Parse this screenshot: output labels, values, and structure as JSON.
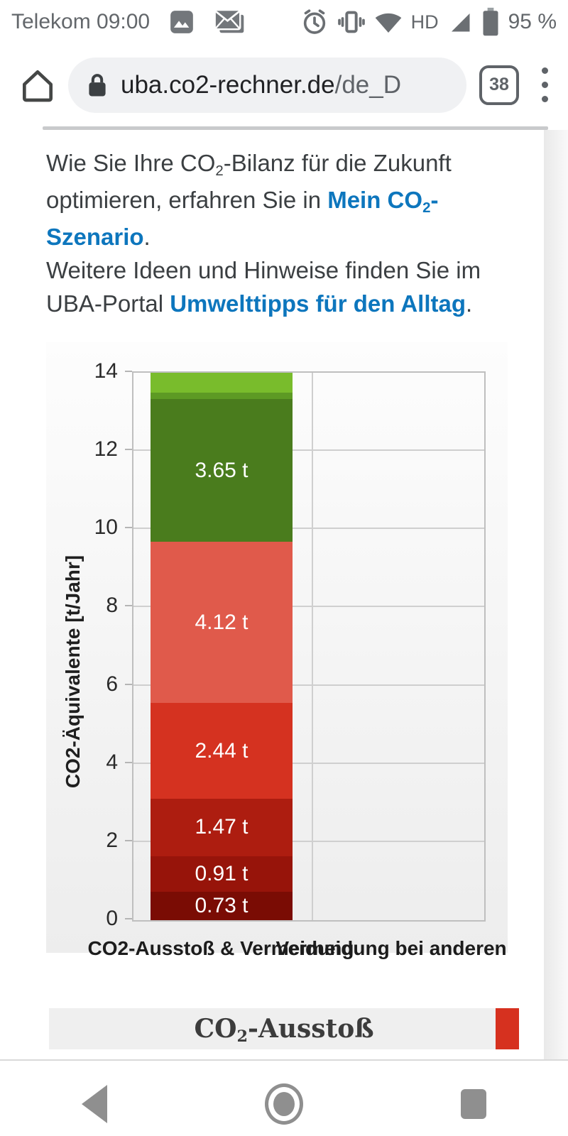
{
  "status_bar": {
    "carrier_time": "Telekom 09:00",
    "hd_label": "HD",
    "battery_pct": "95 %",
    "icons": [
      "photo-notification-icon",
      "email-notification-icon",
      "alarm-icon",
      "vibrate-icon",
      "wifi-icon",
      "signal-icon",
      "battery-icon"
    ]
  },
  "browser": {
    "url_domain": "uba.co2-rechner.de",
    "url_path": "/de_D",
    "tab_count": "38"
  },
  "article": {
    "link_color": "#0d76bd",
    "lines": [
      [
        {
          "t": "Wie Sie Ihre CO"
        },
        {
          "t": "2",
          "sub": 1
        },
        {
          "t": "-Bilanz für die Zukunft"
        }
      ],
      [
        {
          "t": "optimieren, erfahren Sie in "
        },
        {
          "t": "Mein CO",
          "link": 1
        },
        {
          "t": "2",
          "sub": 1,
          "link": 1
        },
        {
          "t": "-",
          "link": 1
        }
      ],
      [
        {
          "t": "Szenario",
          "link": 1
        },
        {
          "t": "."
        }
      ],
      [
        {
          "t": "Weitere Ideen und Hinweise finden Sie im"
        }
      ],
      [
        {
          "t": "UBA-Portal "
        },
        {
          "t": "Umwelttipps für den Alltag",
          "link": 1
        },
        {
          "t": "."
        }
      ]
    ]
  },
  "chart_data": {
    "type": "bar",
    "subtype": "stacked-single-column",
    "title": "",
    "ylabel": "CO2-Äquivalente [t/Jahr]",
    "xlabel": "",
    "ylim": [
      0,
      14
    ],
    "yticks": [
      0,
      2,
      4,
      6,
      8,
      10,
      12,
      14
    ],
    "grid": "horizontal",
    "categories": [
      "CO2-Ausstoß & Vermeidung",
      "Vermeidung bei anderen"
    ],
    "bars": [
      {
        "category": "CO2-Ausstoß & Vermeidung",
        "segments_bottom_to_top": [
          {
            "value": 0.73,
            "label": "0.73 t",
            "color": "#7a0c04"
          },
          {
            "value": 0.91,
            "label": "0.91 t",
            "color": "#97140a"
          },
          {
            "value": 1.47,
            "label": "1.47 t",
            "color": "#ad1d10"
          },
          {
            "value": 2.44,
            "label": "2.44 t",
            "color": "#d53220"
          },
          {
            "value": 4.12,
            "label": "4.12 t",
            "color": "#e05a4b"
          },
          {
            "value": 3.65,
            "label": "3.65 t",
            "color": "#4a7c1d"
          },
          {
            "value": 0.18,
            "label": "",
            "color": "#5d9a24"
          },
          {
            "value": 0.5,
            "label": "",
            "color": "#79bc2c"
          }
        ],
        "note": "top green segments unlabeled, clipped at axis max 14"
      },
      {
        "category": "Vermeidung bei anderen",
        "segments_bottom_to_top": []
      }
    ]
  },
  "legend": {
    "label_segments": [
      {
        "t": "CO"
      },
      {
        "t": "2",
        "sub": 1
      },
      {
        "t": "-Ausstoß"
      }
    ],
    "swatch_color": "#d6311f"
  },
  "nav": {
    "back": "back-button",
    "home": "home-button",
    "recents": "recents-button"
  }
}
